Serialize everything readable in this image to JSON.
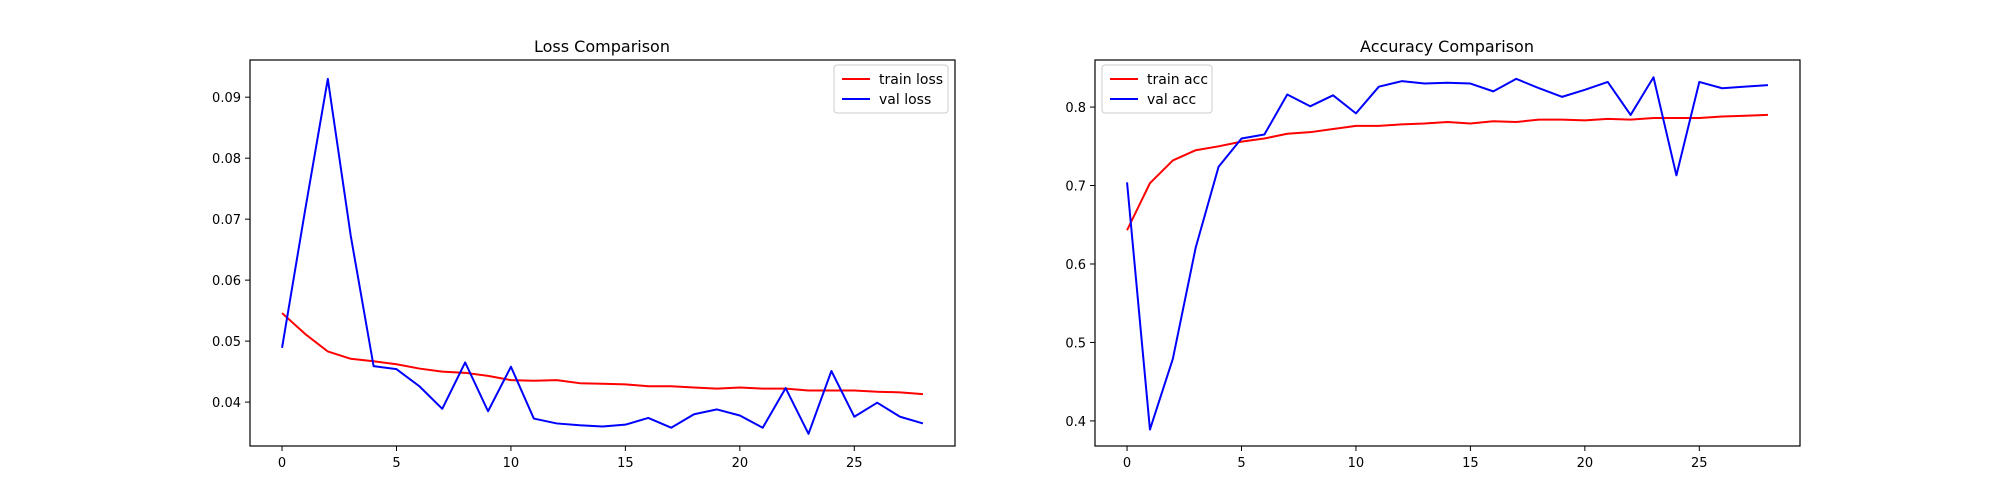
{
  "chart_data": [
    {
      "type": "line",
      "title": "Loss Comparison",
      "xlabel": "",
      "ylabel": "",
      "xlim": [
        -1.4,
        29.4
      ],
      "ylim": [
        0.0328,
        0.0961
      ],
      "x_ticks": [
        0,
        5,
        10,
        15,
        20,
        25
      ],
      "y_ticks": [
        0.04,
        0.05,
        0.06,
        0.07,
        0.08,
        0.09
      ],
      "tick_labels_x": [
        "0",
        "5",
        "10",
        "15",
        "20",
        "25"
      ],
      "tick_labels_y": [
        "0.04",
        "0.05",
        "0.06",
        "0.07",
        "0.08",
        "0.09"
      ],
      "legend_loc": "top-right",
      "grid": false,
      "series": [
        {
          "name": "train loss",
          "color": "#ff0000",
          "x": [
            0,
            1,
            2,
            3,
            4,
            5,
            6,
            7,
            8,
            9,
            10,
            11,
            12,
            13,
            14,
            15,
            16,
            17,
            18,
            19,
            20,
            21,
            22,
            23,
            24,
            25,
            26,
            27,
            28
          ],
          "y": [
            0.0546,
            0.0512,
            0.0483,
            0.0471,
            0.0467,
            0.0462,
            0.0455,
            0.045,
            0.0448,
            0.0443,
            0.0436,
            0.0435,
            0.0436,
            0.0431,
            0.043,
            0.0429,
            0.0426,
            0.0426,
            0.0424,
            0.0422,
            0.0424,
            0.0422,
            0.0422,
            0.0419,
            0.0419,
            0.0419,
            0.0417,
            0.0416,
            0.0413
          ]
        },
        {
          "name": "val loss",
          "color": "#0000ff",
          "x": [
            0,
            1,
            2,
            3,
            4,
            5,
            6,
            7,
            8,
            9,
            10,
            11,
            12,
            13,
            14,
            15,
            16,
            17,
            18,
            19,
            20,
            21,
            22,
            23,
            24,
            25,
            26,
            27,
            28
          ],
          "y": [
            0.0489,
            0.0713,
            0.093,
            0.0673,
            0.0459,
            0.0454,
            0.0426,
            0.0389,
            0.0465,
            0.0385,
            0.0458,
            0.0373,
            0.0365,
            0.0362,
            0.036,
            0.0363,
            0.0374,
            0.0358,
            0.038,
            0.0388,
            0.0378,
            0.0358,
            0.0423,
            0.0348,
            0.0451,
            0.0376,
            0.0399,
            0.0376,
            0.0365
          ]
        }
      ]
    },
    {
      "type": "line",
      "title": "Accuracy Comparison",
      "xlabel": "",
      "ylabel": "",
      "xlim": [
        -1.4,
        29.4
      ],
      "ylim": [
        0.368,
        0.86
      ],
      "x_ticks": [
        0,
        5,
        10,
        15,
        20,
        25
      ],
      "y_ticks": [
        0.4,
        0.5,
        0.6,
        0.7,
        0.8
      ],
      "tick_labels_x": [
        "0",
        "5",
        "10",
        "15",
        "20",
        "25"
      ],
      "tick_labels_y": [
        "0.4",
        "0.5",
        "0.6",
        "0.7",
        "0.8"
      ],
      "legend_loc": "top-left",
      "grid": false,
      "series": [
        {
          "name": "train acc",
          "color": "#ff0000",
          "x": [
            0,
            1,
            2,
            3,
            4,
            5,
            6,
            7,
            8,
            9,
            10,
            11,
            12,
            13,
            14,
            15,
            16,
            17,
            18,
            19,
            20,
            21,
            22,
            23,
            24,
            25,
            26,
            27,
            28
          ],
          "y": [
            0.643,
            0.703,
            0.732,
            0.745,
            0.75,
            0.756,
            0.76,
            0.766,
            0.768,
            0.772,
            0.776,
            0.776,
            0.778,
            0.779,
            0.781,
            0.779,
            0.782,
            0.781,
            0.784,
            0.784,
            0.783,
            0.785,
            0.784,
            0.786,
            0.786,
            0.786,
            0.788,
            0.789,
            0.79
          ]
        },
        {
          "name": "val acc",
          "color": "#0000ff",
          "x": [
            0,
            1,
            2,
            3,
            4,
            5,
            6,
            7,
            8,
            9,
            10,
            11,
            12,
            13,
            14,
            15,
            16,
            17,
            18,
            19,
            20,
            21,
            22,
            23,
            24,
            25,
            26,
            27,
            28
          ],
          "y": [
            0.704,
            0.389,
            0.479,
            0.621,
            0.724,
            0.76,
            0.765,
            0.816,
            0.801,
            0.815,
            0.792,
            0.826,
            0.833,
            0.83,
            0.831,
            0.83,
            0.82,
            0.836,
            0.824,
            0.813,
            0.822,
            0.832,
            0.79,
            0.838,
            0.713,
            0.832,
            0.824,
            0.826,
            0.828
          ]
        }
      ]
    }
  ]
}
